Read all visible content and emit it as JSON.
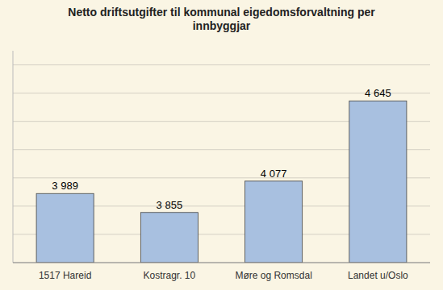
{
  "chart_data": {
    "type": "bar",
    "title": "Netto driftsutgifter til kommunal eigedomsforvaltning per\ninnbyggjar",
    "categories": [
      "1517 Hareid",
      "Kostragr. 10",
      "Møre og Romsdal",
      "Landet u/Oslo"
    ],
    "values": [
      3989,
      3855,
      4077,
      4645
    ],
    "value_labels": [
      "3 989",
      "3 855",
      "4 077",
      "4 645"
    ],
    "data_labels": true,
    "color": "#a8c0e0",
    "ylim": [
      3500,
      5000
    ],
    "yticks": [
      3500,
      3700,
      3900,
      4100,
      4300,
      4500,
      4700,
      4900
    ],
    "grid": true,
    "tick_labels": "x"
  }
}
